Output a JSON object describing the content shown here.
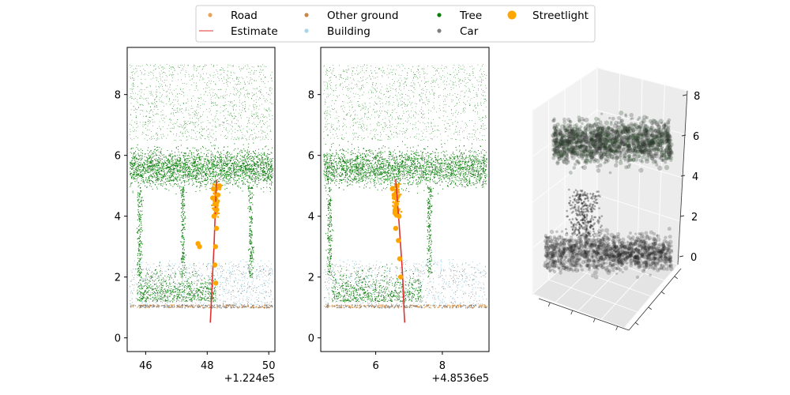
{
  "legend": {
    "placement": "top-center",
    "columns": 4,
    "entries": [
      {
        "label": "Road",
        "color": "#e8a35a",
        "marker": "point"
      },
      {
        "label": "Estimate",
        "color": "#e03030",
        "marker": "line"
      },
      {
        "label": "Other ground",
        "color": "#c8874a",
        "marker": "point"
      },
      {
        "label": "Building",
        "color": "#a5d7e8",
        "marker": "point"
      },
      {
        "label": "Tree",
        "color": "#0a7d0a",
        "marker": "point"
      },
      {
        "label": "Car",
        "color": "#7f7f7f",
        "marker": "point"
      },
      {
        "label": "Streetlight",
        "color": "#ffa500",
        "marker": "big-point"
      }
    ]
  },
  "chart_data": [
    {
      "type": "scatter",
      "view": "side view (x vs height)",
      "xlim": [
        45.4,
        50.2
      ],
      "ylim": [
        -0.45,
        9.55
      ],
      "xticks": [
        {
          "value": 46,
          "label": "46"
        },
        {
          "value": 48,
          "label": "48"
        },
        {
          "value": 50,
          "label": "50"
        }
      ],
      "yticks": [
        {
          "value": 0,
          "label": "0"
        },
        {
          "value": 2,
          "label": "2"
        },
        {
          "value": 4,
          "label": "4"
        },
        {
          "value": 6,
          "label": "6"
        },
        {
          "value": 8,
          "label": "8"
        }
      ],
      "offset_text": "+1.224e5",
      "grid": false,
      "series": [
        {
          "name": "Estimate",
          "type": "line",
          "color": "#e03030",
          "points": [
            [
              48.1,
              0.5
            ],
            [
              48.12,
              0.9
            ],
            [
              48.15,
              1.5
            ],
            [
              48.18,
              2.2
            ],
            [
              48.22,
              3.0
            ],
            [
              48.25,
              3.8
            ],
            [
              48.28,
              4.5
            ],
            [
              48.3,
              5.2
            ]
          ]
        },
        {
          "name": "Streetlight",
          "color": "#ffa500",
          "points": [
            [
              48.2,
              4.9
            ],
            [
              48.35,
              4.7
            ],
            [
              48.25,
              4.4
            ],
            [
              48.3,
              4.2
            ],
            [
              48.18,
              4.6
            ],
            [
              48.4,
              5.0
            ],
            [
              48.22,
              4.0
            ],
            [
              47.7,
              3.1
            ],
            [
              47.75,
              3.0
            ],
            [
              48.3,
              3.6
            ],
            [
              48.27,
              3.0
            ],
            [
              48.25,
              2.4
            ],
            [
              48.28,
              1.8
            ]
          ]
        }
      ]
    },
    {
      "type": "scatter",
      "view": "side view (y vs height)",
      "xlim": [
        4.35,
        9.4
      ],
      "ylim": [
        -0.45,
        9.55
      ],
      "xticks": [
        {
          "value": 6,
          "label": "6"
        },
        {
          "value": 8,
          "label": "8"
        }
      ],
      "yticks": [
        {
          "value": 0,
          "label": "0"
        },
        {
          "value": 2,
          "label": "2"
        },
        {
          "value": 4,
          "label": "4"
        },
        {
          "value": 6,
          "label": "6"
        },
        {
          "value": 8,
          "label": "8"
        }
      ],
      "offset_text": "+4.8536e5",
      "grid": false,
      "series": [
        {
          "name": "Estimate",
          "type": "line",
          "color": "#e03030",
          "points": [
            [
              6.6,
              5.2
            ],
            [
              6.65,
              4.5
            ],
            [
              6.7,
              3.8
            ],
            [
              6.75,
              3.0
            ],
            [
              6.8,
              2.2
            ],
            [
              6.83,
              1.5
            ],
            [
              6.85,
              0.9
            ],
            [
              6.87,
              0.5
            ]
          ]
        },
        {
          "name": "Streetlight",
          "color": "#ffa500",
          "points": [
            [
              6.5,
              4.9
            ],
            [
              6.55,
              4.7
            ],
            [
              6.62,
              4.4
            ],
            [
              6.58,
              4.2
            ],
            [
              6.7,
              4.0
            ],
            [
              6.6,
              3.6
            ],
            [
              6.68,
              3.2
            ],
            [
              6.72,
              2.6
            ],
            [
              6.75,
              2.0
            ]
          ]
        }
      ]
    },
    {
      "type": "scatter",
      "view": "3d",
      "zticks": [
        {
          "value": 0,
          "label": "0"
        },
        {
          "value": 2,
          "label": "2"
        },
        {
          "value": 4,
          "label": "4"
        },
        {
          "value": 6,
          "label": "6"
        },
        {
          "value": 8,
          "label": "8"
        }
      ],
      "grid": true
    }
  ]
}
